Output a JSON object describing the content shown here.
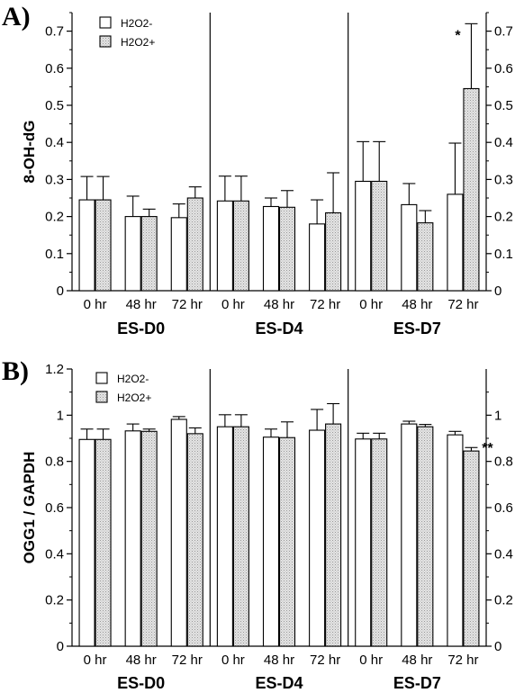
{
  "colors": {
    "axis": "#000000",
    "bar_neg": "#ffffff",
    "bar_pos": "#d9d9d9",
    "bar_pos_pattern": "dotted-grey"
  },
  "chart_data": [
    {
      "type": "bar",
      "panel_label": "A)",
      "ylabel": "8-OH-dG",
      "ylim": [
        0,
        0.75
      ],
      "yticks": [
        "0",
        "0.1",
        "0.2",
        "0.3",
        "0.4",
        "0.5",
        "0.6",
        "0.7"
      ],
      "yticks_right": [
        "0",
        "0.1",
        "0.2",
        "0.3",
        "0.4",
        "0.5",
        "0.6",
        "0.7"
      ],
      "legend": {
        "placement": "top-left",
        "entries": [
          "H2O2-",
          "H2O2+"
        ]
      },
      "groups": [
        "ES-D0",
        "ES-D4",
        "ES-D7"
      ],
      "categories": [
        "0 hr",
        "48 hr",
        "72 hr"
      ],
      "series": [
        {
          "name": "H2O2-",
          "values": [
            [
              0.245,
              0.2,
              0.197
            ],
            [
              0.242,
              0.227,
              0.18
            ],
            [
              0.295,
              0.232,
              0.26
            ]
          ],
          "error": [
            [
              0.063,
              0.055,
              0.037
            ],
            [
              0.067,
              0.023,
              0.065
            ],
            [
              0.107,
              0.057,
              0.138
            ]
          ]
        },
        {
          "name": "H2O2+",
          "values": [
            [
              0.245,
              0.2,
              0.25
            ],
            [
              0.242,
              0.225,
              0.21
            ],
            [
              0.295,
              0.183,
              0.545
            ]
          ],
          "error": [
            [
              0.063,
              0.02,
              0.03
            ],
            [
              0.067,
              0.045,
              0.108
            ],
            [
              0.107,
              0.033,
              0.175
            ]
          ]
        }
      ],
      "annotations": [
        {
          "group": 2,
          "category": 2,
          "series": 1,
          "text": "*"
        }
      ]
    },
    {
      "type": "bar",
      "panel_label": "B)",
      "ylabel": "OGG1 / GAPDH",
      "ylim": [
        0,
        1.2
      ],
      "yticks": [
        "0",
        "0.2",
        "0.4",
        "0.6",
        "0.8",
        "1",
        "1.2"
      ],
      "yticks_right": [
        "0",
        "0.2",
        "0.4",
        "0.6",
        "0.8",
        "1"
      ],
      "legend": {
        "placement": "top-left",
        "entries": [
          "H2O2-",
          "H2O2+"
        ]
      },
      "groups": [
        "ES-D0",
        "ES-D4",
        "ES-D7"
      ],
      "categories": [
        "0 hr",
        "48 hr",
        "72 hr"
      ],
      "series": [
        {
          "name": "H2O2-",
          "values": [
            [
              0.895,
              0.932,
              0.982
            ],
            [
              0.95,
              0.905,
              0.935
            ],
            [
              0.897,
              0.962,
              0.915
            ]
          ],
          "error": [
            [
              0.045,
              0.03,
              0.012
            ],
            [
              0.052,
              0.035,
              0.09
            ],
            [
              0.025,
              0.012,
              0.015
            ]
          ]
        },
        {
          "name": "H2O2+",
          "values": [
            [
              0.895,
              0.93,
              0.92
            ],
            [
              0.95,
              0.903,
              0.962
            ],
            [
              0.897,
              0.95,
              0.845
            ]
          ],
          "error": [
            [
              0.045,
              0.01,
              0.025
            ],
            [
              0.052,
              0.068,
              0.088
            ],
            [
              0.025,
              0.01,
              0.015
            ]
          ]
        }
      ],
      "annotations": [
        {
          "group": 2,
          "category": 2,
          "series": 1,
          "text": "**"
        }
      ]
    }
  ]
}
